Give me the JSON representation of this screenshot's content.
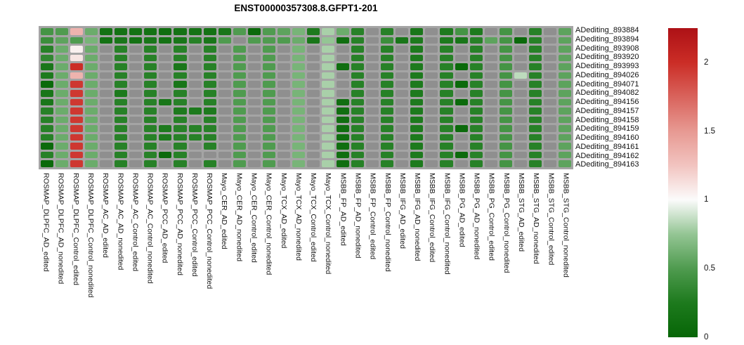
{
  "title": "ENST00000357308.8.GFPT1-201",
  "chart_data": {
    "type": "heatmap",
    "title": "ENST00000357308.8.GFPT1-201",
    "legend_position": "right",
    "grid": false,
    "na_color": "#8f8f8f",
    "panel_bg": "#a4a4a4",
    "rows": [
      "ADediting_893884",
      "ADediting_893894",
      "ADediting_893908",
      "ADediting_893920",
      "ADediting_893993",
      "ADediting_894026",
      "ADediting_894071",
      "ADediting_894082",
      "ADediting_894156",
      "ADediting_894157",
      "ADediting_894158",
      "ADediting_894159",
      "ADediting_894160",
      "ADediting_894161",
      "ADediting_894162",
      "ADediting_894163"
    ],
    "columns": [
      "ROSMAP_DLPFC_AD_edited",
      "ROSMAP_DLPFC_AD_nonedited",
      "ROSMAP_DLPFC_Control_edited",
      "ROSMAP_DLPFC_Control_nonedited",
      "ROSMAP_AC_AD_edited",
      "ROSMAP_AC_AD_nonedited",
      "ROSMAP_AC_Control_edited",
      "ROSMAP_AC_Control_nonedited",
      "ROSMAP_PCC_AD_edited",
      "ROSMAP_PCC_AD_nonedited",
      "ROSMAP_PCC_Control_edited",
      "ROSMAP_PCC_Control_nonedited",
      "Mayo_CER_AD_edited",
      "Mayo_CER_AD_nonedited",
      "Mayo_CER_Control_edited",
      "Mayo_CER_Control_nonedited",
      "Mayo_TCX_AD_edited",
      "Mayo_TCX_AD_nonedited",
      "Mayo_TCX_Control_edited",
      "Mayo_TCX_Control_nonedited",
      "MSBB_FP_AD_edited",
      "MSBB_FP_AD_nonedited",
      "MSBB_FP_Control_edited",
      "MSBB_FP_Control_nonedited",
      "MSBB_IFG_AD_edited",
      "MSBB_IFG_AD_nonedited",
      "MSBB_IFG_Control_edited",
      "MSBB_IFG_Control_nonedited",
      "MSBB_PG_AD_edited",
      "MSBB_PG_AD_nonedited",
      "MSBB_PG_Control_edited",
      "MSBB_PG_Control_nonedited",
      "MSBB_STG_AD_edited",
      "MSBB_STG_AD_nonedited",
      "MSBB_STG_Control_edited",
      "MSBB_STG_Control_nonedited"
    ],
    "values": [
      [
        0.45,
        0.5,
        1.35,
        0.6,
        0.15,
        0.15,
        0.15,
        0.15,
        0.1,
        0.15,
        0.15,
        0.15,
        0.2,
        0.5,
        0.05,
        0.5,
        0.55,
        0.65,
        0.25,
        0.8,
        0.6,
        0.3,
        null,
        0.3,
        null,
        0.2,
        null,
        0.25,
        0.45,
        0.25,
        null,
        0.45,
        null,
        0.3,
        null,
        0.55
      ],
      [
        0.4,
        0.55,
        0.5,
        0.65,
        0.15,
        0.2,
        0.15,
        0.2,
        0.15,
        0.2,
        0.3,
        0.2,
        0.5,
        null,
        0.5,
        0.5,
        0.5,
        0.6,
        0.2,
        0.75,
        0.1,
        0.3,
        null,
        0.4,
        0.2,
        0.25,
        null,
        0.25,
        0.2,
        0.3,
        0.55,
        0.45,
        0.05,
        0.3,
        null,
        0.55
      ],
      [
        0.3,
        0.6,
        1.05,
        0.6,
        null,
        0.3,
        null,
        0.3,
        null,
        0.3,
        null,
        0.3,
        null,
        0.5,
        null,
        0.5,
        null,
        0.65,
        null,
        0.8,
        null,
        0.3,
        null,
        0.3,
        null,
        0.25,
        null,
        0.3,
        null,
        0.3,
        null,
        0.45,
        null,
        0.3,
        null,
        0.55
      ],
      [
        0.35,
        0.6,
        1.1,
        0.6,
        null,
        0.3,
        null,
        0.3,
        null,
        0.3,
        null,
        0.3,
        null,
        0.5,
        null,
        0.5,
        null,
        0.65,
        null,
        0.8,
        null,
        0.3,
        null,
        0.3,
        null,
        0.25,
        null,
        0.3,
        null,
        0.3,
        null,
        0.45,
        null,
        0.3,
        null,
        0.55
      ],
      [
        0.2,
        0.6,
        2.0,
        0.6,
        null,
        0.3,
        null,
        0.3,
        null,
        0.2,
        null,
        0.3,
        null,
        0.5,
        null,
        0.5,
        null,
        0.65,
        null,
        0.8,
        0.1,
        0.3,
        null,
        0.3,
        null,
        0.25,
        null,
        0.3,
        0.05,
        0.3,
        null,
        0.45,
        null,
        0.3,
        null,
        0.55
      ],
      [
        0.25,
        0.6,
        1.35,
        0.6,
        null,
        0.3,
        null,
        0.3,
        null,
        0.3,
        null,
        0.3,
        null,
        0.5,
        null,
        0.5,
        null,
        0.65,
        null,
        0.8,
        null,
        0.3,
        null,
        0.3,
        null,
        0.25,
        null,
        0.3,
        null,
        0.3,
        null,
        0.45,
        0.85,
        0.3,
        null,
        0.55
      ],
      [
        0.05,
        0.6,
        1.95,
        0.6,
        null,
        0.3,
        null,
        0.3,
        null,
        0.2,
        null,
        0.3,
        null,
        0.5,
        null,
        0.5,
        null,
        0.65,
        null,
        0.8,
        null,
        0.3,
        null,
        0.3,
        null,
        0.25,
        null,
        0.3,
        0.05,
        0.3,
        null,
        0.45,
        null,
        0.3,
        null,
        0.55
      ],
      [
        0.2,
        0.6,
        1.95,
        0.6,
        null,
        0.25,
        null,
        0.3,
        null,
        0.3,
        null,
        0.3,
        null,
        0.5,
        null,
        0.5,
        null,
        0.65,
        null,
        0.8,
        null,
        0.3,
        null,
        0.3,
        null,
        0.25,
        null,
        0.3,
        null,
        0.3,
        null,
        0.45,
        null,
        0.3,
        null,
        0.55
      ],
      [
        0.2,
        0.6,
        1.95,
        0.6,
        null,
        0.3,
        null,
        0.3,
        0.2,
        0.3,
        null,
        0.3,
        null,
        0.5,
        null,
        0.5,
        null,
        0.65,
        null,
        0.8,
        0.1,
        0.3,
        null,
        0.3,
        null,
        0.25,
        null,
        0.3,
        0.05,
        0.3,
        null,
        0.45,
        null,
        0.3,
        null,
        0.55
      ],
      [
        0.3,
        0.6,
        1.95,
        0.6,
        null,
        0.3,
        null,
        0.3,
        null,
        0.25,
        0.25,
        0.25,
        null,
        0.5,
        null,
        0.5,
        null,
        0.65,
        null,
        0.8,
        0.1,
        0.3,
        null,
        0.3,
        null,
        0.25,
        null,
        0.3,
        null,
        0.3,
        null,
        0.45,
        null,
        0.3,
        null,
        0.55
      ],
      [
        0.3,
        0.6,
        1.95,
        0.6,
        null,
        0.3,
        null,
        0.3,
        null,
        0.3,
        null,
        0.3,
        null,
        0.5,
        null,
        0.5,
        null,
        0.65,
        null,
        0.8,
        0.1,
        0.3,
        null,
        0.3,
        null,
        0.25,
        null,
        0.3,
        null,
        0.3,
        null,
        0.45,
        null,
        0.3,
        null,
        0.55
      ],
      [
        0.3,
        0.6,
        1.95,
        0.6,
        null,
        0.3,
        null,
        0.3,
        0.25,
        0.3,
        0.3,
        0.3,
        null,
        0.5,
        null,
        0.5,
        null,
        0.65,
        null,
        0.8,
        0.1,
        0.3,
        null,
        0.3,
        null,
        0.25,
        null,
        0.3,
        0.05,
        0.3,
        null,
        0.45,
        null,
        0.3,
        null,
        0.55
      ],
      [
        0.3,
        0.6,
        1.95,
        0.6,
        null,
        0.3,
        null,
        0.3,
        0.25,
        0.3,
        0.3,
        0.3,
        null,
        0.5,
        null,
        0.5,
        null,
        0.65,
        null,
        0.8,
        0.1,
        0.3,
        null,
        0.3,
        null,
        0.25,
        null,
        0.3,
        null,
        0.3,
        null,
        0.45,
        null,
        0.3,
        null,
        0.55
      ],
      [
        0.05,
        0.6,
        1.95,
        0.6,
        null,
        0.3,
        null,
        0.3,
        null,
        0.3,
        null,
        0.3,
        null,
        0.5,
        null,
        0.5,
        null,
        0.65,
        null,
        0.8,
        0.1,
        0.3,
        null,
        0.3,
        null,
        0.25,
        null,
        0.3,
        null,
        0.3,
        null,
        0.45,
        null,
        0.3,
        null,
        0.55
      ],
      [
        0.3,
        0.6,
        1.95,
        0.6,
        null,
        0.3,
        null,
        0.3,
        0.05,
        0.3,
        null,
        null,
        null,
        0.5,
        null,
        0.5,
        null,
        0.65,
        null,
        0.8,
        0.1,
        0.3,
        null,
        0.3,
        null,
        0.25,
        null,
        0.3,
        0.05,
        0.3,
        null,
        0.45,
        null,
        0.3,
        null,
        0.55
      ],
      [
        0.05,
        0.6,
        1.95,
        0.6,
        null,
        0.3,
        null,
        0.3,
        null,
        0.3,
        null,
        0.3,
        null,
        0.5,
        null,
        0.5,
        null,
        0.65,
        null,
        0.8,
        0.1,
        0.3,
        null,
        0.3,
        null,
        0.25,
        null,
        0.3,
        null,
        0.3,
        null,
        0.45,
        null,
        0.3,
        null,
        0.55
      ]
    ],
    "colorscale": {
      "min": 0,
      "max": 2.25,
      "stops": [
        [
          0.0,
          "#076607"
        ],
        [
          0.25,
          "#1d7a1d"
        ],
        [
          0.5,
          "#4f9b4f"
        ],
        [
          0.75,
          "#94c594"
        ],
        [
          1.0,
          "#fbfbfb"
        ],
        [
          1.25,
          "#f2c4c0"
        ],
        [
          1.5,
          "#e79992"
        ],
        [
          2.0,
          "#cb2d26"
        ],
        [
          2.25,
          "#ad1116"
        ]
      ]
    },
    "colorbar_ticks": [
      "2",
      "1.5",
      "1",
      "0.5",
      "0"
    ],
    "colorbar_tick_values": [
      2,
      1.5,
      1,
      0.5,
      0
    ]
  }
}
